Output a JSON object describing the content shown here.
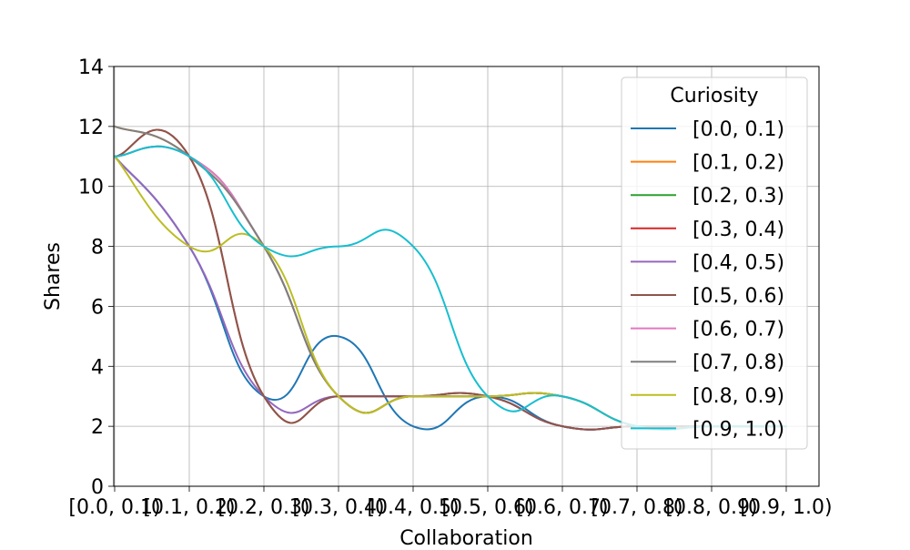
{
  "chart_data": {
    "type": "line",
    "xlabel": "Collaboration",
    "ylabel": "Shares",
    "categories": [
      "[0.0, 0.1)",
      "[0.1, 0.2)",
      "[0.2, 0.3)",
      "[0.3, 0.4)",
      "[0.4, 0.5)",
      "[0.5, 0.6)",
      "[0.6, 0.7)",
      "[0.7, 0.8)",
      "[0.8, 0.9)",
      "[0.9, 1.0)"
    ],
    "ylim": [
      0,
      14
    ],
    "yticks": [
      0,
      2,
      4,
      6,
      8,
      10,
      12,
      14
    ],
    "grid": true,
    "smooth": true,
    "legend": {
      "title": "Curiosity",
      "placement": "upper right"
    },
    "series": [
      {
        "name": "[0.0, 0.1)",
        "color": "#1f77b4",
        "values": [
          11,
          8,
          3,
          5,
          2,
          3,
          2,
          2,
          2,
          2
        ]
      },
      {
        "name": "[0.1, 0.2)",
        "color": "#ff7f0e",
        "values": [
          12,
          11,
          8,
          3,
          3,
          3,
          3,
          2,
          2,
          2
        ]
      },
      {
        "name": "[0.2, 0.3)",
        "color": "#2ca02c",
        "values": [
          11,
          11,
          8,
          3,
          3,
          3,
          3,
          2,
          2,
          2
        ]
      },
      {
        "name": "[0.3, 0.4)",
        "color": "#d62728",
        "values": [
          11,
          11,
          3,
          3,
          3,
          3,
          2,
          2,
          2,
          2
        ]
      },
      {
        "name": "[0.4, 0.5)",
        "color": "#9467bd",
        "values": [
          11,
          8,
          3,
          3,
          3,
          3,
          2,
          2,
          2,
          2
        ]
      },
      {
        "name": "[0.5, 0.6)",
        "color": "#8c564b",
        "values": [
          11,
          11,
          3,
          3,
          3,
          3,
          2,
          2,
          2,
          2
        ]
      },
      {
        "name": "[0.6, 0.7)",
        "color": "#e377c2",
        "values": [
          11,
          11,
          8,
          3,
          3,
          3,
          3,
          2,
          2,
          2
        ]
      },
      {
        "name": "[0.7, 0.8)",
        "color": "#7f7f7f",
        "values": [
          12,
          11,
          8,
          3,
          3,
          3,
          3,
          2,
          2,
          2
        ]
      },
      {
        "name": "[0.8, 0.9)",
        "color": "#bcbd22",
        "values": [
          11,
          8,
          8,
          3,
          3,
          3,
          3,
          2,
          2,
          2
        ]
      },
      {
        "name": "[0.9, 1.0)",
        "color": "#17becf",
        "values": [
          11,
          11,
          8,
          8,
          8,
          3,
          3,
          2,
          2,
          2
        ]
      }
    ]
  }
}
